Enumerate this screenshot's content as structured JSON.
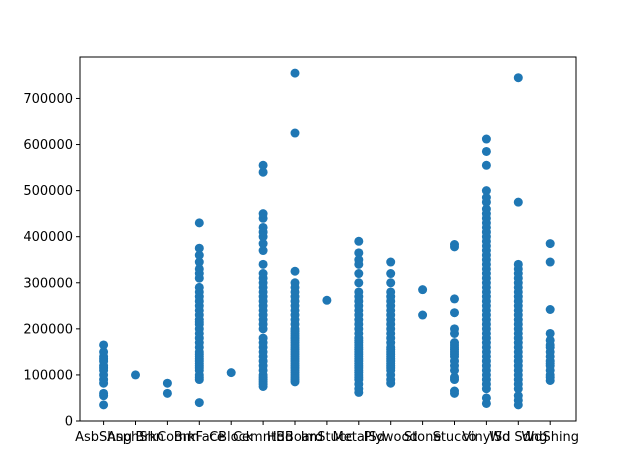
{
  "chart_data": {
    "type": "scatter",
    "title": "",
    "xlabel": "",
    "ylabel": "",
    "categories": [
      "AsbShng",
      "AsphShn",
      "BrkComm",
      "BrkFace",
      "CBlock",
      "CemntBd",
      "HdBoard",
      "ImStucc",
      "MetalSd",
      "Plywood",
      "Stone",
      "Stucco",
      "VinylSd",
      "Wd Sdng",
      "WdShing"
    ],
    "ylim": [
      0,
      790000
    ],
    "yticks": [
      0,
      100000,
      200000,
      300000,
      400000,
      500000,
      600000,
      700000
    ],
    "ytick_labels": [
      "0",
      "100000",
      "200000",
      "300000",
      "400000",
      "500000",
      "600000",
      "700000"
    ],
    "grid": false,
    "point_color": "#1f77b4",
    "series": [
      {
        "values": [
          [
            35000,
            55000,
            60000,
            82000,
            90000,
            100000,
            110000,
            115000,
            120000,
            130000,
            135000,
            140000,
            150000,
            165000
          ],
          [
            100000
          ],
          [
            60000,
            82000
          ],
          [
            40000,
            90000,
            95000,
            100000,
            110000,
            115000,
            120000,
            125000,
            130000,
            135000,
            140000,
            145000,
            150000,
            160000,
            170000,
            180000,
            190000,
            200000,
            210000,
            215000,
            220000,
            230000,
            240000,
            250000,
            260000,
            270000,
            280000,
            290000,
            310000,
            320000,
            330000,
            345000,
            360000,
            375000,
            430000
          ],
          [
            105000
          ],
          [
            75000,
            80000,
            85000,
            90000,
            95000,
            100000,
            110000,
            120000,
            130000,
            140000,
            150000,
            160000,
            170000,
            180000,
            200000,
            210000,
            220000,
            230000,
            240000,
            250000,
            260000,
            270000,
            280000,
            290000,
            300000,
            310000,
            320000,
            340000,
            370000,
            385000,
            400000,
            410000,
            420000,
            440000,
            450000,
            540000,
            555000
          ],
          [
            85000,
            90000,
            95000,
            100000,
            105000,
            110000,
            115000,
            120000,
            125000,
            130000,
            135000,
            140000,
            145000,
            150000,
            155000,
            160000,
            165000,
            170000,
            175000,
            180000,
            185000,
            190000,
            195000,
            200000,
            210000,
            220000,
            230000,
            240000,
            250000,
            260000,
            270000,
            280000,
            290000,
            300000,
            325000,
            625000,
            755000
          ],
          [
            262000
          ],
          [
            62000,
            70000,
            80000,
            90000,
            95000,
            100000,
            105000,
            110000,
            115000,
            120000,
            125000,
            130000,
            135000,
            140000,
            145000,
            150000,
            155000,
            160000,
            165000,
            170000,
            175000,
            180000,
            190000,
            200000,
            210000,
            220000,
            230000,
            240000,
            250000,
            260000,
            270000,
            280000,
            300000,
            320000,
            340000,
            350000,
            365000,
            390000
          ],
          [
            82000,
            90000,
            100000,
            110000,
            115000,
            120000,
            125000,
            130000,
            135000,
            140000,
            145000,
            150000,
            155000,
            160000,
            170000,
            180000,
            190000,
            200000,
            210000,
            220000,
            230000,
            240000,
            250000,
            260000,
            270000,
            280000,
            300000,
            320000,
            345000
          ],
          [
            230000,
            285000
          ],
          [
            60000,
            65000,
            90000,
            95000,
            110000,
            120000,
            130000,
            140000,
            145000,
            150000,
            155000,
            160000,
            165000,
            170000,
            190000,
            200000,
            235000,
            265000,
            378000,
            383000
          ],
          [
            38000,
            50000,
            70000,
            80000,
            90000,
            100000,
            110000,
            120000,
            130000,
            140000,
            150000,
            160000,
            170000,
            180000,
            190000,
            200000,
            210000,
            220000,
            230000,
            240000,
            250000,
            260000,
            270000,
            280000,
            290000,
            300000,
            310000,
            320000,
            330000,
            340000,
            350000,
            360000,
            370000,
            380000,
            390000,
            400000,
            410000,
            420000,
            430000,
            440000,
            450000,
            460000,
            475000,
            485000,
            500000,
            555000,
            585000,
            612000
          ],
          [
            35000,
            45000,
            55000,
            70000,
            80000,
            90000,
            100000,
            110000,
            120000,
            130000,
            140000,
            150000,
            160000,
            170000,
            180000,
            190000,
            200000,
            210000,
            220000,
            230000,
            240000,
            250000,
            260000,
            270000,
            280000,
            290000,
            300000,
            310000,
            320000,
            330000,
            340000,
            475000,
            745000
          ],
          [
            88000,
            95000,
            100000,
            110000,
            120000,
            125000,
            130000,
            140000,
            150000,
            160000,
            165000,
            175000,
            190000,
            242000,
            345000,
            385000
          ]
        ]
      }
    ]
  }
}
